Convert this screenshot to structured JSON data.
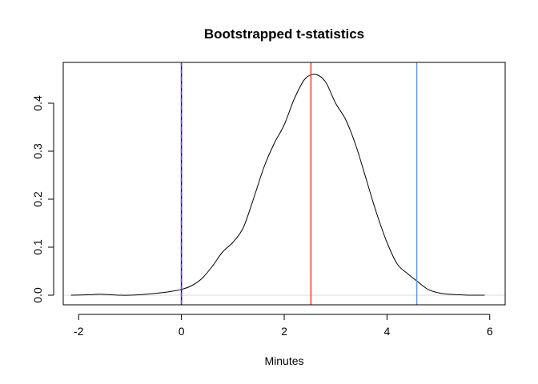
{
  "chart_data": {
    "type": "line",
    "title": "Bootstrapped t-statistics",
    "xlabel": "Minutes",
    "ylabel": "",
    "xlim": [
      -2.3,
      6.3
    ],
    "ylim": [
      -0.02,
      0.485
    ],
    "x_ticks": [
      -2,
      0,
      2,
      4,
      6
    ],
    "y_ticks": [
      0.0,
      0.1,
      0.2,
      0.3,
      0.4
    ],
    "x_tick_labels": [
      "-2",
      "0",
      "2",
      "4",
      "6"
    ],
    "y_tick_labels": [
      "0.0",
      "0.1",
      "0.2",
      "0.3",
      "0.4"
    ],
    "grid": false,
    "series": [
      {
        "color": "#000000",
        "x": [
          -2.15,
          -1.8,
          -1.6,
          -1.4,
          -1.2,
          -1.0,
          -0.8,
          -0.6,
          -0.4,
          -0.2,
          0.0,
          0.2,
          0.4,
          0.6,
          0.8,
          1.0,
          1.2,
          1.4,
          1.6,
          1.8,
          2.0,
          2.2,
          2.4,
          2.6,
          2.8,
          3.0,
          3.2,
          3.4,
          3.6,
          3.8,
          4.0,
          4.2,
          4.4,
          4.6,
          4.8,
          5.0,
          5.2,
          5.4,
          5.6,
          5.9
        ],
        "y": [
          0.0,
          0.001,
          0.002,
          0.001,
          0.0,
          0.0,
          0.001,
          0.003,
          0.005,
          0.008,
          0.012,
          0.02,
          0.035,
          0.06,
          0.09,
          0.11,
          0.14,
          0.2,
          0.265,
          0.315,
          0.355,
          0.41,
          0.45,
          0.46,
          0.445,
          0.4,
          0.365,
          0.31,
          0.24,
          0.17,
          0.11,
          0.065,
          0.045,
          0.028,
          0.012,
          0.005,
          0.002,
          0.001,
          0.0,
          0.0
        ]
      }
    ],
    "vertical_lines": [
      {
        "x": 0.0,
        "color": "#0000ff",
        "style": "solid"
      },
      {
        "x": 0.0,
        "color": "#a020f0",
        "style": "dashed"
      },
      {
        "x": 2.52,
        "color": "#ff3333",
        "style": "solid"
      },
      {
        "x": 4.58,
        "color": "#6495ed",
        "style": "solid"
      }
    ],
    "horizontal_lines": [
      {
        "y": 0.0,
        "color": "#dddddd",
        "style": "solid"
      }
    ]
  }
}
